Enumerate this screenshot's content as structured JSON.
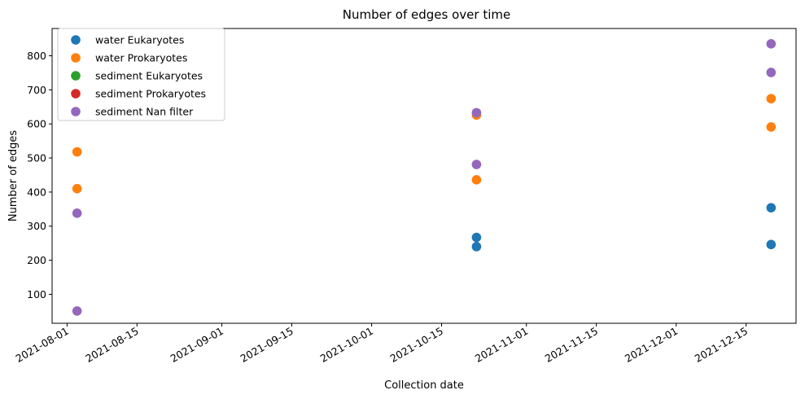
{
  "chart_data": {
    "type": "scatter",
    "title": "Number of edges over time",
    "xlabel": "Collection date",
    "ylabel": "Number of edges",
    "x_axis_type": "date",
    "xlim": [
      "2021-07-29",
      "2021-12-25"
    ],
    "ylim": [
      15,
      880
    ],
    "x_ticks": [
      "2021-08-01",
      "2021-08-15",
      "2021-09-01",
      "2021-09-15",
      "2021-10-01",
      "2021-10-15",
      "2021-11-01",
      "2021-11-15",
      "2021-12-01",
      "2021-12-15"
    ],
    "y_ticks": [
      100,
      200,
      300,
      400,
      500,
      600,
      700,
      800
    ],
    "grid": false,
    "legend_position": "top-left",
    "series": [
      {
        "name": "water Eukaryotes",
        "color": "#1f77b4",
        "points": [
          {
            "x": "2021-10-22",
            "y": 267
          },
          {
            "x": "2021-10-22",
            "y": 240
          },
          {
            "x": "2021-12-20",
            "y": 354
          },
          {
            "x": "2021-12-20",
            "y": 246
          }
        ]
      },
      {
        "name": "water Prokaryotes",
        "color": "#ff7f0e",
        "points": [
          {
            "x": "2021-08-03",
            "y": 518
          },
          {
            "x": "2021-08-03",
            "y": 410
          },
          {
            "x": "2021-10-22",
            "y": 626
          },
          {
            "x": "2021-10-22",
            "y": 436
          },
          {
            "x": "2021-12-20",
            "y": 674
          },
          {
            "x": "2021-12-20",
            "y": 591
          }
        ]
      },
      {
        "name": "sediment Eukaryotes",
        "color": "#2ca02c",
        "points": []
      },
      {
        "name": "sediment Prokaryotes",
        "color": "#d62728",
        "points": []
      },
      {
        "name": "sediment Nan filter",
        "color": "#9467bd",
        "points": [
          {
            "x": "2021-08-03",
            "y": 338
          },
          {
            "x": "2021-08-03",
            "y": 51
          },
          {
            "x": "2021-10-22",
            "y": 633
          },
          {
            "x": "2021-10-22",
            "y": 481
          },
          {
            "x": "2021-12-20",
            "y": 835
          },
          {
            "x": "2021-12-20",
            "y": 751
          }
        ]
      }
    ]
  }
}
